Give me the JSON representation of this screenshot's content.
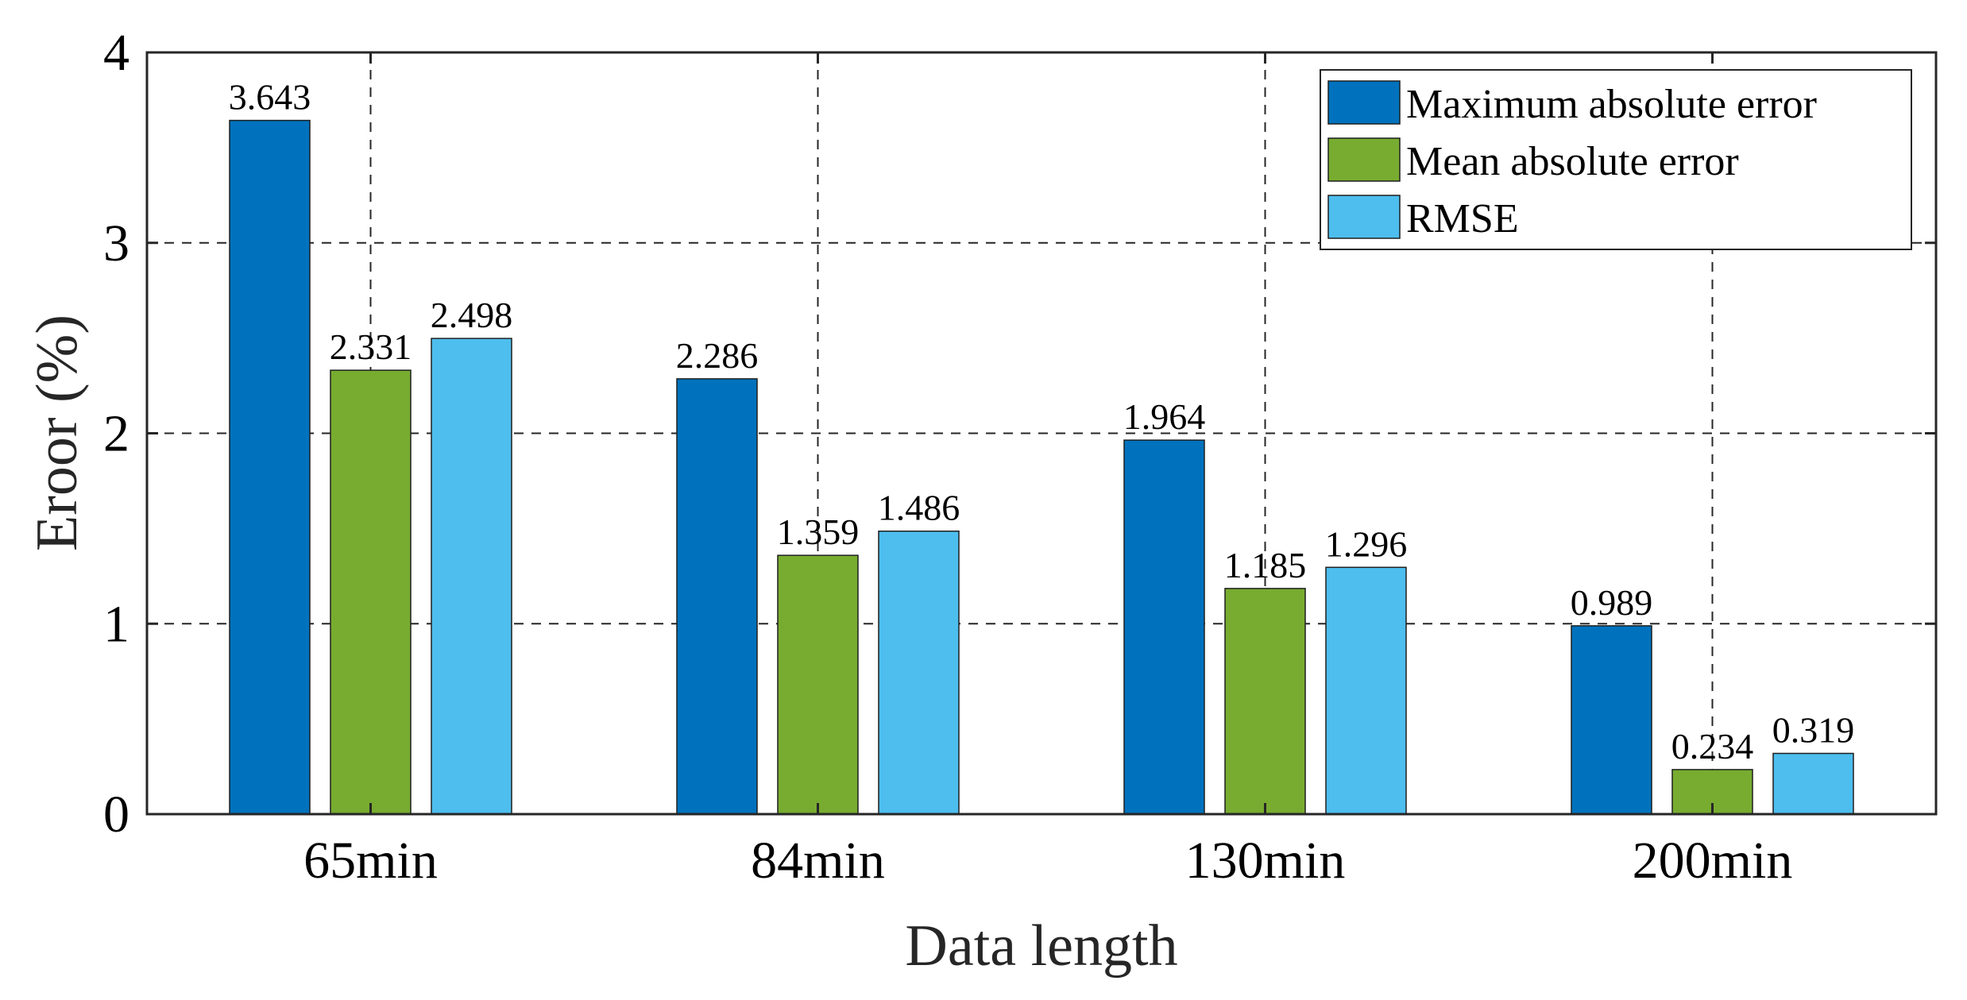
{
  "chart_data": {
    "type": "bar",
    "xlabel": "Data length",
    "ylabel": "Eroor (%)",
    "categories": [
      "65min",
      "84min",
      "130min",
      "200min"
    ],
    "ylim": [
      0,
      4
    ],
    "yticks": [
      "0",
      "1",
      "2",
      "3",
      "4"
    ],
    "grid": true,
    "legend_position": "top-right",
    "series": [
      {
        "name": "Maximum absolute error",
        "color": "#0072BD",
        "values": [
          3.643,
          2.286,
          1.964,
          0.989
        ],
        "labels": [
          "3.643",
          "2.286",
          "1.964",
          "0.989"
        ]
      },
      {
        "name": "Mean absolute error",
        "color": "#77AC30",
        "values": [
          2.331,
          1.359,
          1.185,
          0.234
        ],
        "labels": [
          "2.331",
          "1.359",
          "1.185",
          "0.234"
        ]
      },
      {
        "name": "RMSE",
        "color": "#4DBEEE",
        "values": [
          2.498,
          1.486,
          1.296,
          0.319
        ],
        "labels": [
          "2.498",
          "1.486",
          "1.296",
          "0.319"
        ]
      }
    ]
  }
}
